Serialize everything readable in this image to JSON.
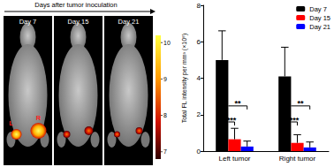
{
  "image_panel": {
    "header": "Days after tumor inoculation",
    "panels": [
      {
        "label": "Day 7",
        "markers": [
          "L",
          "R"
        ]
      },
      {
        "label": "Day 15"
      },
      {
        "label": "Day 21"
      }
    ],
    "colorbar": {
      "range": [
        6.8,
        10.2
      ],
      "ticks": [
        10,
        9,
        8,
        7
      ]
    }
  },
  "chart_data": {
    "type": "bar",
    "y_label": "Total FL intensity per mm³ (×10⁸)",
    "categories": [
      "Left tumor",
      "Right tumor"
    ],
    "series": [
      {
        "name": "Day 7",
        "color": "#000000",
        "values": [
          5.0,
          4.1
        ],
        "errors": [
          1.6,
          1.6
        ]
      },
      {
        "name": "Day 15",
        "color": "#ff0000",
        "values": [
          0.65,
          0.45
        ],
        "errors": [
          0.6,
          0.45
        ]
      },
      {
        "name": "Day 21",
        "color": "#0000ff",
        "values": [
          0.25,
          0.2
        ],
        "errors": [
          0.3,
          0.3
        ]
      }
    ],
    "ylim": [
      0,
      8
    ],
    "yticks": [
      0,
      2,
      4,
      6,
      8
    ],
    "grid": false,
    "legend": "upper right",
    "significance": [
      {
        "category": "Left tumor",
        "from": "Day 7",
        "to": "Day 15",
        "label": "***"
      },
      {
        "category": "Left tumor",
        "from": "Day 7",
        "to": "Day 21",
        "label": "**"
      },
      {
        "category": "Right tumor",
        "from": "Day 7",
        "to": "Day 15",
        "label": "***"
      },
      {
        "category": "Right tumor",
        "from": "Day 7",
        "to": "Day 21",
        "label": "**"
      }
    ]
  }
}
